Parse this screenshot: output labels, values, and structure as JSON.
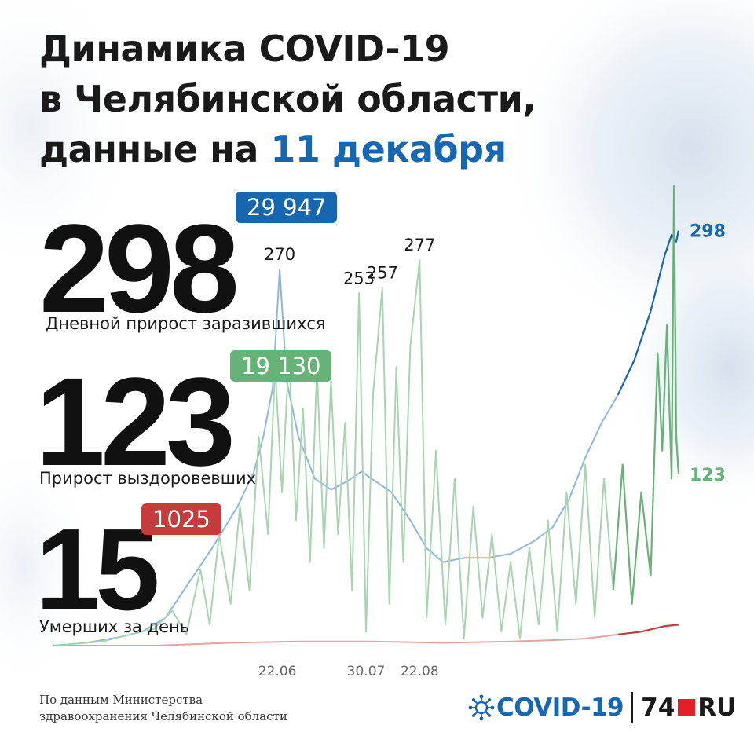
{
  "title": {
    "line1": "Динамика COVID-19",
    "line2": "в Челябинской области,",
    "line3_prefix": "данные на ",
    "line3_date": "11 декабря"
  },
  "stats": {
    "cases": {
      "value": "298",
      "label": "Дневной прирост заразившихся",
      "total": "29 947",
      "color": "#1767b0"
    },
    "recovered": {
      "value": "123",
      "label": "Прирост выздоровевших",
      "total": "19 130",
      "color": "#67b276"
    },
    "deaths": {
      "value": "15",
      "label": "Умерших за день",
      "total": "1025",
      "color": "#c63b3b"
    }
  },
  "source": {
    "line1": "По данным Министерства",
    "line2": "здравоохранения Челябинской области"
  },
  "brand": {
    "covid": "COVID-19",
    "num": "74",
    "ru": "RU"
  },
  "chart_data": {
    "type": "line",
    "x_axis": "date",
    "start": "2020-03-18",
    "end": "2020-12-11",
    "ylim": [
      0,
      300
    ],
    "ticks": [
      "22.06",
      "30.07",
      "22.08"
    ],
    "peak_labels": [
      {
        "date": "2020-06-23",
        "value": 270
      },
      {
        "date": "2020-07-27",
        "value": 253
      },
      {
        "date": "2020-08-06",
        "value": 257
      },
      {
        "date": "2020-08-22",
        "value": 277
      }
    ],
    "series": [
      {
        "name": "Дневной прирост заразившихся",
        "color": "#1767b0",
        "end_label": "298",
        "points": [
          [
            "2020-03-18",
            0
          ],
          [
            "2020-04-01",
            2
          ],
          [
            "2020-04-15",
            6
          ],
          [
            "2020-04-25",
            10
          ],
          [
            "2020-05-05",
            20
          ],
          [
            "2020-05-15",
            45
          ],
          [
            "2020-05-25",
            70
          ],
          [
            "2020-06-05",
            100
          ],
          [
            "2020-06-12",
            125
          ],
          [
            "2020-06-16",
            150
          ],
          [
            "2020-06-20",
            185
          ],
          [
            "2020-06-23",
            270
          ],
          [
            "2020-06-26",
            190
          ],
          [
            "2020-07-01",
            150
          ],
          [
            "2020-07-08",
            120
          ],
          [
            "2020-07-15",
            112
          ],
          [
            "2020-07-22",
            118
          ],
          [
            "2020-07-28",
            125
          ],
          [
            "2020-08-03",
            118
          ],
          [
            "2020-08-10",
            110
          ],
          [
            "2020-08-18",
            90
          ],
          [
            "2020-08-25",
            70
          ],
          [
            "2020-09-01",
            60
          ],
          [
            "2020-09-10",
            63
          ],
          [
            "2020-09-20",
            63
          ],
          [
            "2020-09-30",
            66
          ],
          [
            "2020-10-10",
            75
          ],
          [
            "2020-10-18",
            85
          ],
          [
            "2020-10-25",
            105
          ],
          [
            "2020-11-01",
            135
          ],
          [
            "2020-11-08",
            160
          ],
          [
            "2020-11-15",
            180
          ],
          [
            "2020-11-22",
            205
          ],
          [
            "2020-11-29",
            240
          ],
          [
            "2020-12-05",
            280
          ],
          [
            "2020-12-08",
            295
          ],
          [
            "2020-12-10",
            290
          ],
          [
            "2020-12-11",
            298
          ]
        ]
      },
      {
        "name": "Прирост выздоровевших",
        "color": "#67b276",
        "end_label": "123",
        "points": [
          [
            "2020-03-18",
            0
          ],
          [
            "2020-04-08",
            3
          ],
          [
            "2020-04-20",
            8
          ],
          [
            "2020-04-30",
            12
          ],
          [
            "2020-05-08",
            25
          ],
          [
            "2020-05-14",
            8
          ],
          [
            "2020-05-20",
            55
          ],
          [
            "2020-05-24",
            15
          ],
          [
            "2020-05-28",
            80
          ],
          [
            "2020-06-02",
            30
          ],
          [
            "2020-06-06",
            100
          ],
          [
            "2020-06-10",
            40
          ],
          [
            "2020-06-14",
            150
          ],
          [
            "2020-06-18",
            80
          ],
          [
            "2020-06-21",
            200
          ],
          [
            "2020-06-24",
            110
          ],
          [
            "2020-06-27",
            210
          ],
          [
            "2020-06-30",
            90
          ],
          [
            "2020-07-03",
            170
          ],
          [
            "2020-07-06",
            60
          ],
          [
            "2020-07-09",
            200
          ],
          [
            "2020-07-12",
            70
          ],
          [
            "2020-07-15",
            190
          ],
          [
            "2020-07-18",
            80
          ],
          [
            "2020-07-21",
            160
          ],
          [
            "2020-07-24",
            40
          ],
          [
            "2020-07-27",
            253
          ],
          [
            "2020-07-30",
            10
          ],
          [
            "2020-08-02",
            180
          ],
          [
            "2020-08-06",
            257
          ],
          [
            "2020-08-09",
            30
          ],
          [
            "2020-08-12",
            200
          ],
          [
            "2020-08-15",
            60
          ],
          [
            "2020-08-18",
            215
          ],
          [
            "2020-08-22",
            277
          ],
          [
            "2020-08-25",
            20
          ],
          [
            "2020-08-29",
            140
          ],
          [
            "2020-09-02",
            15
          ],
          [
            "2020-09-06",
            120
          ],
          [
            "2020-09-10",
            5
          ],
          [
            "2020-09-14",
            100
          ],
          [
            "2020-09-18",
            20
          ],
          [
            "2020-09-22",
            80
          ],
          [
            "2020-09-26",
            10
          ],
          [
            "2020-09-30",
            60
          ],
          [
            "2020-10-04",
            5
          ],
          [
            "2020-10-08",
            70
          ],
          [
            "2020-10-12",
            15
          ],
          [
            "2020-10-16",
            90
          ],
          [
            "2020-10-20",
            10
          ],
          [
            "2020-10-24",
            110
          ],
          [
            "2020-10-28",
            30
          ],
          [
            "2020-11-01",
            130
          ],
          [
            "2020-11-05",
            20
          ],
          [
            "2020-11-09",
            120
          ],
          [
            "2020-11-13",
            40
          ],
          [
            "2020-11-17",
            130
          ],
          [
            "2020-11-21",
            30
          ],
          [
            "2020-11-25",
            110
          ],
          [
            "2020-11-29",
            50
          ],
          [
            "2020-12-02",
            210
          ],
          [
            "2020-12-04",
            140
          ],
          [
            "2020-12-06",
            230
          ],
          [
            "2020-12-08",
            120
          ],
          [
            "2020-12-09",
            330
          ],
          [
            "2020-12-10",
            150
          ],
          [
            "2020-12-11",
            123
          ]
        ]
      },
      {
        "name": "Умерших за день",
        "color": "#c63b3b",
        "end_label": "",
        "points": [
          [
            "2020-03-18",
            0
          ],
          [
            "2020-05-01",
            0
          ],
          [
            "2020-06-01",
            2
          ],
          [
            "2020-07-01",
            3
          ],
          [
            "2020-08-01",
            3
          ],
          [
            "2020-09-01",
            2
          ],
          [
            "2020-10-01",
            3
          ],
          [
            "2020-10-20",
            4
          ],
          [
            "2020-11-01",
            5
          ],
          [
            "2020-11-15",
            8
          ],
          [
            "2020-11-25",
            10
          ],
          [
            "2020-12-05",
            14
          ],
          [
            "2020-12-11",
            15
          ]
        ]
      }
    ]
  }
}
